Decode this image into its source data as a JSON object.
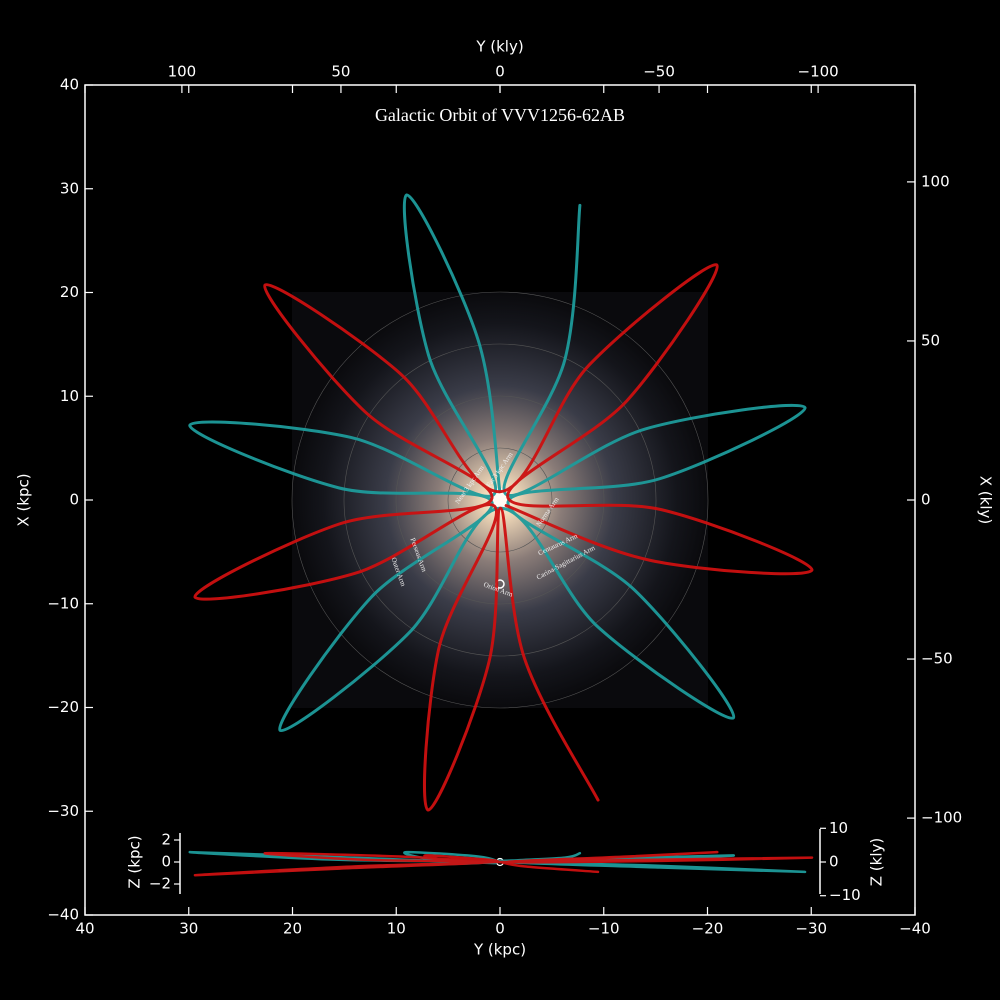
{
  "chart_data": [
    {
      "type": "line",
      "title": "Galactic Orbit of VVV1256-62AB",
      "xlabel": "Y (kpc)",
      "ylabel": "X (kpc)",
      "x2label": "Y (kly)",
      "y2label": "X (kly)",
      "xlim": [
        40,
        -40
      ],
      "ylim": [
        -40,
        40
      ],
      "xticks": [
        40,
        30,
        20,
        10,
        0,
        {
          "value": -10,
          "label": "−10"
        },
        {
          "value": -20,
          "label": "−20"
        },
        {
          "value": -30,
          "label": "−30"
        },
        {
          "value": -40,
          "label": "−40"
        }
      ],
      "yticks": [
        40,
        30,
        20,
        10,
        0,
        {
          "value": -10,
          "label": "−10"
        },
        {
          "value": -20,
          "label": "−20"
        },
        {
          "value": -30,
          "label": "−30"
        },
        {
          "value": -40,
          "label": "−40"
        }
      ],
      "x2lim": [
        130.46,
        -130.46
      ],
      "x2ticks": [
        100,
        50,
        0,
        {
          "value": -50,
          "label": "−50"
        },
        {
          "value": -100,
          "label": "−100"
        }
      ],
      "y2lim": [
        -130.46,
        130.46
      ],
      "y2ticks": [
        100,
        50,
        0,
        {
          "value": -50,
          "label": "−50"
        },
        {
          "value": -100,
          "label": "−100"
        }
      ],
      "annotations": [
        "Perseus Arm",
        "Outer Arm",
        "Norma Arm",
        "Centaurus Arm",
        "Carina-Sagittarius Arm",
        "Orion Arm",
        "Near 3 kpc Arm",
        "Far 3 kpc Arm"
      ],
      "series": [
        {
          "color": "#1e9b9b",
          "x": [
            0.01,
            2.11,
            9.0,
            6.89,
            0.58,
            14.37,
            29.9,
            15.54,
            0.77,
            12.41,
            21.2,
            8.79,
            -0.02,
            -9.54,
            -22.5,
            -12.96,
            -0.78,
            -15.43,
            -29.4,
            -13.98,
            -0.56,
            -6.26,
            -7.7
          ],
          "values": [
            0.8,
            15.43,
            29.4,
            13.97,
            0.55,
            6.03,
            7.2,
            1.17,
            -0.23,
            -9.37,
            -22.2,
            -12.83,
            -0.8,
            -12.33,
            -21.0,
            -8.67,
            -0.18,
            2.06,
            8.9,
            6.84,
            0.57,
            13.55,
            28.4
          ]
        },
        {
          "color": "#cc1010",
          "x": [
            -0.59,
            -14.49,
            -30.07,
            -15.59,
            -0.76,
            -12.29,
            -20.9,
            -8.61,
            0.03,
            9.64,
            22.65,
            13.02,
            0.78,
            15.46,
            29.4,
            13.94,
            0.54,
            5.91,
            6.94,
            1.04,
            -0.04,
            -2.35,
            -9.45
          ],
          "values": [
            -0.54,
            -5.82,
            -6.75,
            -0.94,
            0.24,
            9.63,
            22.65,
            13.03,
            0.8,
            12.21,
            20.72,
            8.51,
            0.17,
            -2.3,
            -9.35,
            -7.06,
            -0.59,
            -14.37,
            -29.88,
            -15.51,
            -0.8,
            -15.24,
            -28.92
          ]
        }
      ]
    },
    {
      "type": "line",
      "ylabel": "Z (kpc)",
      "y2label": "Z (kly)",
      "xlim": [
        40,
        -40
      ],
      "ylim": [
        -3,
        3
      ],
      "yticks": [
        2,
        0,
        {
          "value": -2,
          "label": "−2"
        }
      ],
      "y2lim": [
        -9.79,
        9.79
      ],
      "y2ticks": [
        10,
        0,
        {
          "value": -10,
          "label": "−10"
        }
      ],
      "series": [
        {
          "color": "#1e9b9b",
          "x": [
            0.01,
            2.11,
            9.0,
            6.89,
            0.58,
            14.37,
            29.9,
            15.54,
            0.77,
            12.41,
            21.2,
            8.79,
            -0.02,
            -9.54,
            -22.5,
            -12.96,
            -0.78,
            -15.43,
            -29.4,
            -13.98,
            -0.56,
            -6.26,
            -7.7
          ],
          "values": [
            0,
            0.5,
            0.9,
            0.3,
            -0.1,
            0.4,
            0.9,
            0.2,
            0,
            -0.4,
            -0.8,
            -0.3,
            0.1,
            0.3,
            0.6,
            0.2,
            0,
            -0.5,
            -0.9,
            -0.3,
            0,
            0.4,
            0.8
          ]
        },
        {
          "color": "#cc1010",
          "x": [
            -0.59,
            -14.49,
            -30.07,
            -15.59,
            -0.76,
            -12.29,
            -20.9,
            -8.61,
            0.03,
            9.64,
            22.65,
            13.02,
            0.78,
            15.46,
            29.4,
            13.94,
            0.54,
            5.91,
            6.94,
            1.04,
            -0.04,
            -2.35,
            -9.45
          ],
          "values": [
            0,
            0.2,
            0.4,
            0.1,
            0,
            0.5,
            0.9,
            0.3,
            0,
            0.5,
            0.8,
            0.2,
            0,
            -0.6,
            -1.2,
            -0.4,
            0,
            0.3,
            0.6,
            0.2,
            0,
            -0.4,
            -0.9
          ]
        }
      ]
    }
  ]
}
